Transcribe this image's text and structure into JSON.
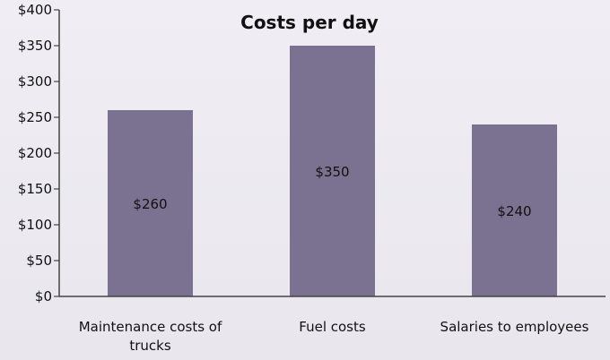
{
  "chart_data": {
    "type": "bar",
    "title": "Costs per day",
    "xlabel": "",
    "ylabel": "",
    "categories": [
      "Maintenance costs of trucks",
      "Fuel costs",
      "Salaries to employees"
    ],
    "category_lines": [
      [
        "Maintenance costs of",
        "trucks"
      ],
      [
        "Fuel costs"
      ],
      [
        "Salaries to employees"
      ]
    ],
    "values": [
      260,
      350,
      240
    ],
    "data_labels": [
      "$260",
      "$350",
      "$240"
    ],
    "ylim": [
      0,
      400
    ],
    "yticks": [
      0,
      50,
      100,
      150,
      200,
      250,
      300,
      350,
      400
    ],
    "ytick_labels": [
      "$0",
      "$50",
      "$100",
      "$150",
      "$200",
      "$250",
      "$300",
      "$350",
      "$400"
    ],
    "grid": false,
    "legend": "none",
    "colors": {
      "bar": "#7b7190",
      "axis": "#444444",
      "text": "#111111"
    }
  }
}
